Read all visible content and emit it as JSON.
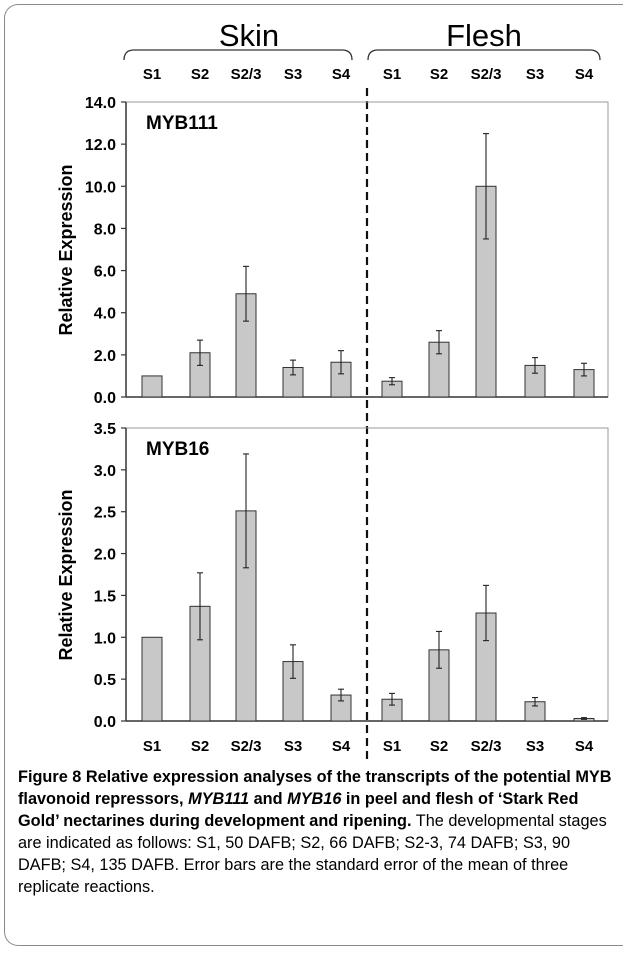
{
  "chart_data": {
    "type": "bar",
    "groups": [
      "Skin",
      "Flesh"
    ],
    "categories": [
      "S1",
      "S2",
      "S2/3",
      "S3",
      "S4"
    ],
    "panels": [
      {
        "gene": "MYB111",
        "ylabel": "Relative Expression",
        "ylim": [
          0,
          14
        ],
        "yticks": [
          "0.0",
          "2.0",
          "4.0",
          "6.0",
          "8.0",
          "10.0",
          "12.0",
          "14.0"
        ],
        "series": [
          {
            "name": "Skin",
            "values": [
              1.0,
              2.1,
              4.9,
              1.4,
              1.65
            ],
            "errors": [
              0,
              0.6,
              1.3,
              0.35,
              0.55
            ]
          },
          {
            "name": "Flesh",
            "values": [
              0.75,
              2.6,
              10.0,
              1.5,
              1.3
            ],
            "errors": [
              0.17,
              0.55,
              2.5,
              0.37,
              0.3
            ]
          }
        ]
      },
      {
        "gene": "MYB16",
        "ylabel": "Relative Expression",
        "ylim": [
          0,
          3.5
        ],
        "yticks": [
          "0.0",
          "0.5",
          "1.0",
          "1.5",
          "2.0",
          "2.5",
          "3.0",
          "3.5"
        ],
        "series": [
          {
            "name": "Skin",
            "values": [
              1.0,
              1.37,
              2.51,
              0.71,
              0.31
            ],
            "errors": [
              0,
              0.4,
              0.68,
              0.2,
              0.07
            ]
          },
          {
            "name": "Flesh",
            "values": [
              0.26,
              0.85,
              1.29,
              0.23,
              0.03
            ],
            "errors": [
              0.07,
              0.22,
              0.33,
              0.05,
              0.01
            ]
          }
        ]
      }
    ]
  },
  "caption": {
    "title_bold": "Figure 8 Relative expression analyses of the transcripts of the potential MYB flavonoid repressors,",
    "gene1": "MYB111",
    "and": "and",
    "gene2": "MYB16",
    "title_rest": "in peel and flesh of ‘Stark Red Gold’ nectarines during development and ripening.",
    "body": "The developmental stages are indicated as follows: S1, 50 DAFB; S2, 66 DAFB; S2-3, 74 DAFB; S3, 90 DAFB; S4, 135 DAFB. Error bars are the standard error of the mean of three replicate reactions."
  },
  "colors": {
    "bar_fill": "#c8c8c8",
    "bar_stroke": "#333333",
    "frame": "#8a8a8a"
  }
}
